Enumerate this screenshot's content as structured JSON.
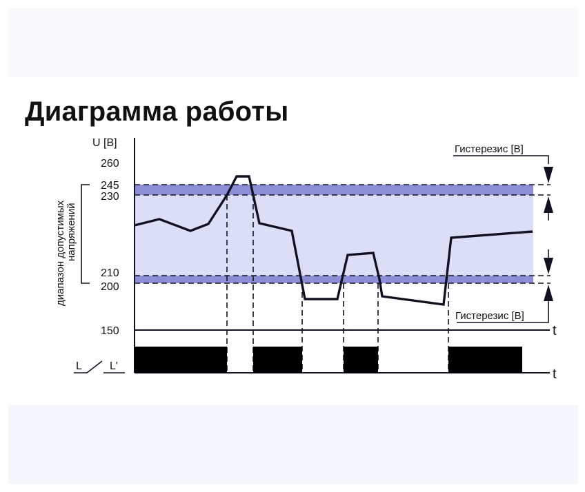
{
  "title": "Диаграмма работы",
  "y_axis": {
    "unit_label": "U [B]",
    "ticks": [
      "260",
      "245",
      "230",
      "210",
      "200",
      "150"
    ]
  },
  "range_label": {
    "line1": "диапазон допустимых",
    "line2": "напряжений"
  },
  "hysteresis_top": "Гистерезис [B]",
  "hysteresis_bottom": "Гистерезис [B]",
  "time_label_voltage": "t",
  "time_label_relay": "t",
  "relay_labels": {
    "left": "L",
    "right": "L'"
  },
  "colors": {
    "band_dark": "#8c8fd6",
    "band_light": "#dcddf6",
    "line": "#111122",
    "relay": "#000000"
  }
}
